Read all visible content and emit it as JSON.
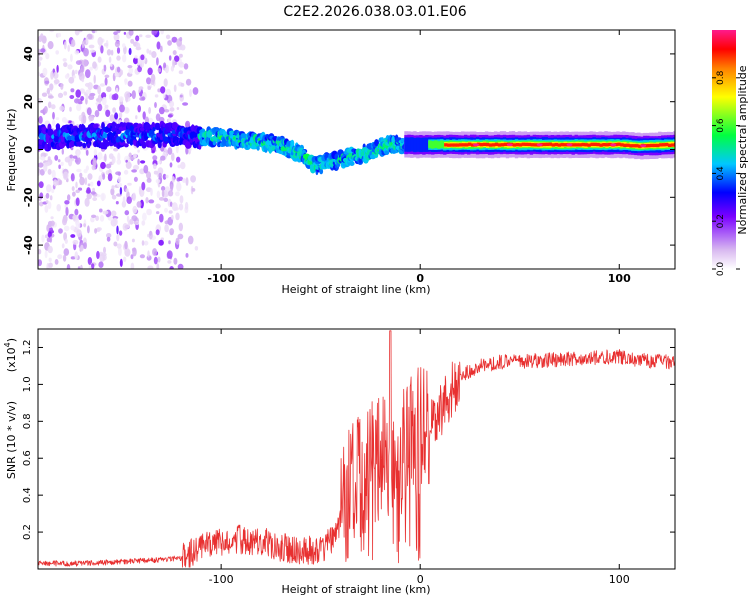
{
  "title": "C2E2.2026.038.03.01.E06",
  "colors": {
    "snr_line": "#e83030",
    "axis": "#000000",
    "colormap": [
      "#ffffff",
      "#d8b8f0",
      "#7a00ff",
      "#0000ff",
      "#00c8ff",
      "#00ff40",
      "#ffff00",
      "#ff8000",
      "#ff0000",
      "#ff1a8c"
    ]
  },
  "chart_data": [
    {
      "id": "spectrogram",
      "type": "heatmap",
      "xlabel": "Height of straight line (km)",
      "ylabel": "Frequency (Hz)",
      "xlim": [
        -192,
        128
      ],
      "ylim": [
        -50,
        50
      ],
      "xticks": [
        -100,
        0,
        100
      ],
      "yticks": [
        -40,
        -20,
        0,
        20,
        40
      ],
      "colorbar": {
        "label": "Normalized spectral amplitude",
        "range": [
          0.0,
          1.0
        ],
        "ticks": [
          0.0,
          0.2,
          0.4,
          0.6,
          0.8
        ]
      },
      "features": [
        {
          "region": "x -192..-115",
          "description": "broadband noise over full frequency range",
          "amplitude": 0.15
        },
        {
          "region": "x -115..0",
          "description": "band descending",
          "freq_start_hz": 6,
          "freq_end_hz": -10,
          "amplitude": 0.4
        },
        {
          "region": "x 0..128",
          "description": "narrow strong band",
          "freq_hz": 1.5,
          "amplitude": 0.95
        }
      ],
      "ridge": {
        "x": [
          -192,
          -160,
          -140,
          -120,
          -100,
          -90,
          -80,
          -70,
          -60,
          -52,
          -45,
          -40,
          -35,
          -30,
          -25,
          -20,
          -15,
          -10,
          -5,
          0,
          10,
          20,
          40,
          60,
          80,
          100,
          110,
          128
        ],
        "y": [
          5,
          6,
          6,
          6,
          5,
          4,
          3,
          2,
          -2,
          -7,
          -5,
          -4,
          -3,
          -2,
          -1,
          1,
          2,
          2,
          2,
          2,
          2,
          2,
          2,
          2,
          2,
          2,
          1.5,
          2
        ]
      }
    },
    {
      "id": "snr",
      "type": "line",
      "xlabel": "Height of straight line (km)",
      "ylabel": "SNR (10 * v/v)",
      "ylabel_multiplier": "(x10",
      "ylabel_exponent": "4",
      "xlim": [
        -192,
        128
      ],
      "ylim": [
        0,
        1.3
      ],
      "xticks": [
        -100,
        0,
        100
      ],
      "yticks": [
        0.2,
        0.4,
        0.6,
        0.8,
        1.0,
        1.2
      ],
      "series": [
        {
          "name": "SNR",
          "x": [
            -192,
            -170,
            -150,
            -130,
            -120,
            -110,
            -100,
            -90,
            -80,
            -70,
            -60,
            -50,
            -45,
            -40,
            -35,
            -30,
            -25,
            -20,
            -15,
            -10,
            -5,
            0,
            5,
            10,
            15,
            20,
            30,
            40,
            60,
            80,
            100,
            110,
            128
          ],
          "y": [
            0.03,
            0.03,
            0.04,
            0.05,
            0.06,
            0.12,
            0.15,
            0.16,
            0.15,
            0.12,
            0.1,
            0.1,
            0.15,
            0.25,
            0.45,
            0.5,
            0.55,
            0.6,
            0.6,
            0.6,
            0.7,
            0.75,
            0.8,
            0.85,
            0.95,
            1.05,
            1.1,
            1.12,
            1.13,
            1.14,
            1.15,
            1.13,
            1.12
          ]
        }
      ],
      "noise_amplitude": [
        {
          "x": [
            -192,
            -120
          ],
          "amp": 0.015
        },
        {
          "x": [
            -120,
            -40
          ],
          "amp": 0.08
        },
        {
          "x": [
            -40,
            5
          ],
          "amp": 0.35
        },
        {
          "x": [
            5,
            20
          ],
          "amp": 0.15
        },
        {
          "x": [
            20,
            128
          ],
          "amp": 0.04
        }
      ]
    }
  ]
}
